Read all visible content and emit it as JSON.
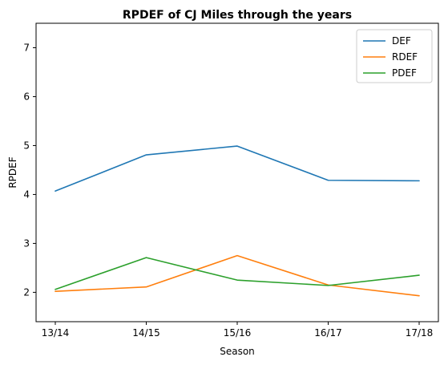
{
  "chart_data": {
    "type": "line",
    "title": "RPDEF of CJ Miles through the years",
    "xlabel": "Season",
    "ylabel": "RPDEF",
    "categories": [
      "13/14",
      "14/15",
      "15/16",
      "16/17",
      "17/18"
    ],
    "series": [
      {
        "name": "DEF",
        "color": "#1f77b4",
        "values": [
          4.07,
          4.81,
          4.99,
          4.29,
          4.28
        ]
      },
      {
        "name": "RDEF",
        "color": "#ff7f0e",
        "values": [
          2.02,
          2.11,
          2.75,
          2.15,
          1.93
        ]
      },
      {
        "name": "PDEF",
        "color": "#2ca02c",
        "values": [
          2.06,
          2.71,
          2.25,
          2.14,
          2.35
        ]
      }
    ],
    "ylim": [
      1.4,
      7.5
    ],
    "yticks": [
      2,
      3,
      4,
      5,
      6,
      7
    ],
    "grid": false,
    "legend": "top-right"
  }
}
